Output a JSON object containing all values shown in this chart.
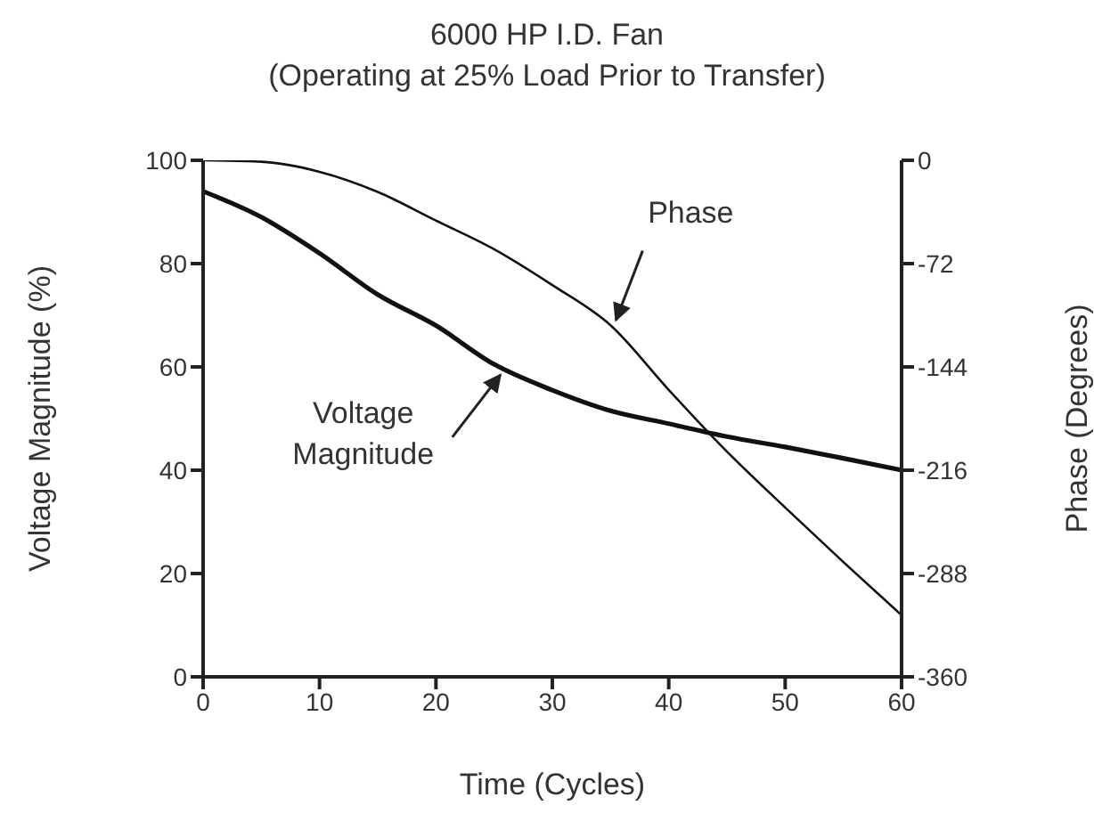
{
  "chart_data": {
    "type": "line",
    "title": "6000 HP I.D. Fan",
    "subtitle": "(Operating at 25% Load Prior to Transfer)",
    "xlabel": "Time (Cycles)",
    "ylabel": "Voltage Magnitude (%)",
    "y2label": "Phase (Degrees)",
    "x": [
      0,
      5,
      10,
      15,
      20,
      25,
      30,
      35,
      40,
      45,
      50,
      55,
      60
    ],
    "series": [
      {
        "color": "#111111",
        "values": [
          94,
          89,
          82,
          74,
          68,
          60.5,
          55.5,
          51.5,
          49,
          46.5,
          44.5,
          42.3,
          40
        ]
      },
      {
        "color": "#111111",
        "axis": "y2",
        "values": [
          0,
          -1,
          -8,
          -22,
          -42,
          -62,
          -87,
          -115,
          -160,
          -203,
          -242,
          -280,
          -317
        ]
      }
    ],
    "xlim": [
      0,
      60
    ],
    "xticks": [
      0,
      10,
      20,
      30,
      40,
      50,
      60
    ],
    "ylim": [
      0,
      100
    ],
    "yticks": [
      0,
      20,
      40,
      60,
      80,
      100
    ],
    "y2lim": [
      -360,
      0
    ],
    "y2ticks": [
      -360,
      -288,
      -216,
      -144,
      -72,
      0
    ],
    "annotations": [
      {
        "text": "Phase",
        "x": 35,
        "y": 68
      },
      {
        "text": "Voltage Magnitude",
        "x": 26,
        "y": 59.5
      }
    ],
    "grid": false,
    "legend": false,
    "marker": "none",
    "line_style": "solid"
  }
}
